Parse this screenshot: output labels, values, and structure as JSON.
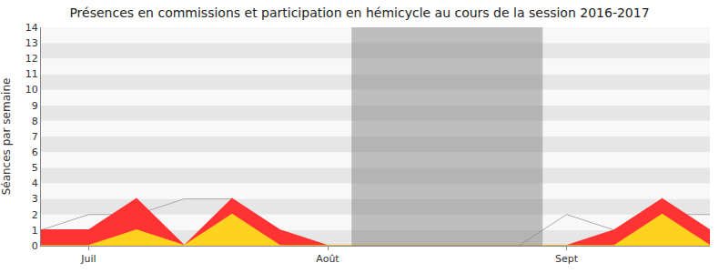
{
  "chart_data": {
    "type": "area",
    "title": "Présences en commissions et participation en hémicycle au cours de la session 2016-2017",
    "y_label": "Séances par semaine",
    "categories": [
      null,
      "Juil",
      null,
      null,
      null,
      null,
      "Août",
      null,
      null,
      null,
      null,
      "Sept",
      null,
      null,
      null
    ],
    "series": [
      {
        "type": "line",
        "color": "#aaaaaa",
        "values": [
          1,
          2,
          2,
          3,
          3,
          1,
          0,
          0,
          0,
          0,
          0,
          2,
          1,
          2,
          2
        ]
      },
      {
        "type": "area",
        "color": "#ff3333",
        "values": [
          1,
          1,
          3,
          0,
          3,
          1,
          0,
          0,
          0,
          0,
          0,
          0,
          1,
          3,
          1
        ]
      },
      {
        "type": "area",
        "color": "#ffd21f",
        "values": [
          0,
          0,
          1,
          0,
          2,
          0,
          0,
          0,
          0,
          0,
          0,
          0,
          0,
          2,
          0
        ]
      }
    ],
    "holiday_range": [
      6.5,
      10.5
    ],
    "ylim": [
      0,
      14
    ],
    "yticks": [
      0,
      1,
      2,
      3,
      4,
      5,
      6,
      7,
      8,
      9,
      10,
      11,
      12,
      13,
      14
    ],
    "grid": true
  }
}
